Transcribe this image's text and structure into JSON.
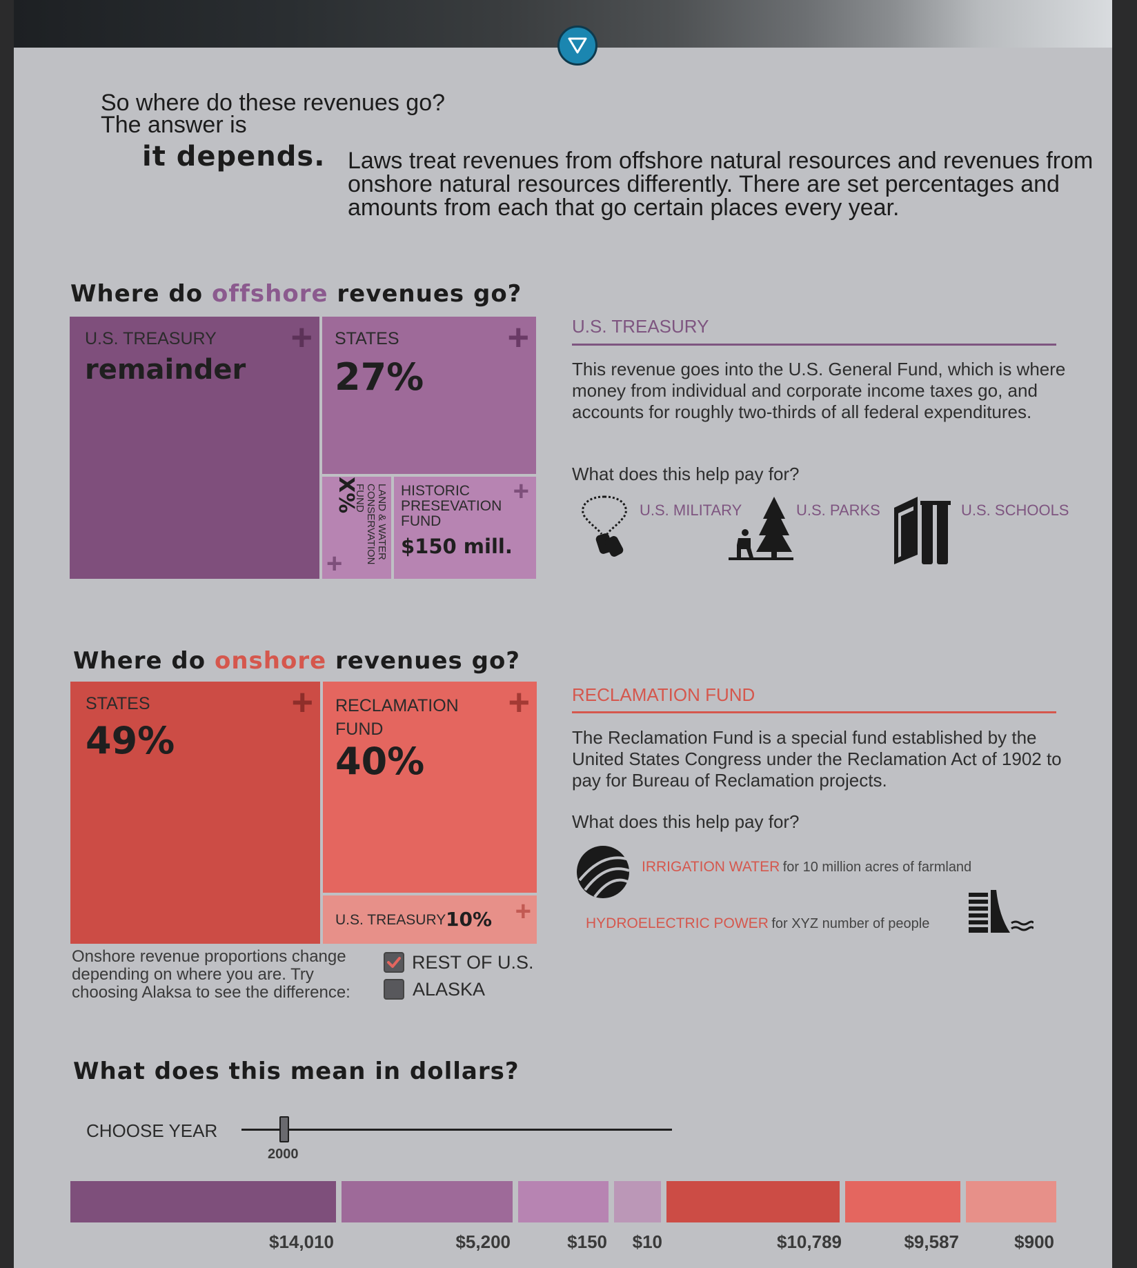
{
  "intro": {
    "line1": "So where do these revenues go?",
    "line2": "The answer is",
    "emphasis": "it depends.",
    "body": "Laws treat revenues from offshore natural resources and revenues from onshore natural resources differently. There are set percentages and amounts from each that go certain places every year."
  },
  "offshore": {
    "title_pre": "Where do ",
    "title_accent": "offshore",
    "title_post": " revenues go?",
    "boxes": [
      {
        "label": "U.S. TREASURY",
        "value": "remainder"
      },
      {
        "label": "STATES",
        "value": "27%"
      },
      {
        "label": "LAND & WATER CONSERVATION FUND",
        "value": "X%"
      },
      {
        "label": "HISTORIC PRESEVATION FUND",
        "value": "$150 mill."
      }
    ],
    "info": {
      "title": "U.S. TREASURY",
      "body": "This revenue goes into the U.S. General Fund, which is where money from individual and corporate income taxes go, and accounts for roughly two-thirds of all federal expenditures.",
      "question": "What does this help pay for?",
      "items": [
        {
          "label": "U.S. MILITARY",
          "icon": "dog-tags-icon"
        },
        {
          "label": "U.S. PARKS",
          "icon": "tree-icon"
        },
        {
          "label": "U.S. SCHOOLS",
          "icon": "books-icon"
        }
      ]
    }
  },
  "onshore": {
    "title_pre": "Where do ",
    "title_accent": "onshore",
    "title_post": " revenues go?",
    "boxes": [
      {
        "label": "STATES",
        "value": "49%"
      },
      {
        "label": "RECLAMATION FUND",
        "value": "40%"
      },
      {
        "label": "U.S. TREASURY",
        "value": "10%"
      }
    ],
    "note": "Onshore revenue proportions change depending on where you are. Try choosing Alaksa to see the difference:",
    "options": [
      {
        "label": "REST OF U.S.",
        "checked": true
      },
      {
        "label": "ALASKA",
        "checked": false
      }
    ],
    "info": {
      "title": "RECLAMATION FUND",
      "body": "The Reclamation Fund is a special fund established by the United States Congress under the Reclamation Act of 1902 to pay for Bureau of Reclamation projects.",
      "question": "What does this help pay for?",
      "items": [
        {
          "label": "IRRIGATION WATER",
          "desc": "for 10 million acres of farmland",
          "icon": "irrigation-icon"
        },
        {
          "label": "HYDROELECTRIC POWER",
          "desc": "for XYZ number of people",
          "icon": "dam-icon"
        }
      ]
    }
  },
  "dollars": {
    "title": "What does this mean in dollars?",
    "choose_label": "CHOOSE YEAR",
    "year": "2000",
    "segments": [
      {
        "value": "$14,010",
        "color": "#7e4f7b"
      },
      {
        "value": "$5,200",
        "color": "#9e6a99"
      },
      {
        "value": "$150",
        "color": "#b784b2"
      },
      {
        "value": "$10",
        "color": "#bb97b7"
      },
      {
        "value": "$10,789",
        "color": "#cc4c45"
      },
      {
        "value": "$9,587",
        "color": "#e4665f"
      },
      {
        "value": "$900",
        "color": "#e79089"
      }
    ]
  },
  "colors": {
    "offshore_accent": "#8b5a8e",
    "onshore_accent": "#d5574d",
    "panel_bg": "#bfc0c4"
  }
}
